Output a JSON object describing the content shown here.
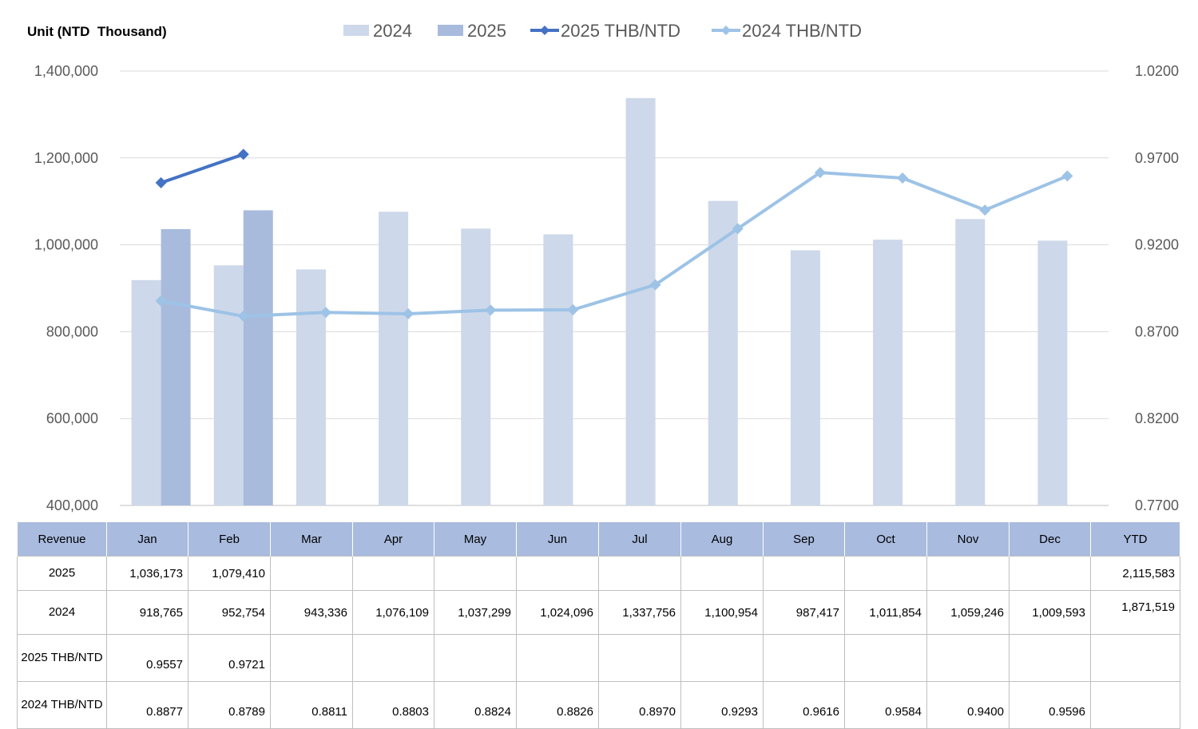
{
  "unit_label": "Unit (NTD  Thousand)",
  "colors": {
    "bar_2024": "#cdd8ea",
    "bar_2025": "#a8bbdd",
    "line_2025": "#4472c4",
    "line_2024": "#9dc3e6",
    "grid": "#d9d9d9",
    "header_bg": "#a9bbdf"
  },
  "chart_data": {
    "type": "bar",
    "categories": [
      "Jan",
      "Feb",
      "Mar",
      "Apr",
      "May",
      "Jun",
      "Jul",
      "Aug",
      "Sep",
      "Oct",
      "Nov",
      "Dec"
    ],
    "series": [
      {
        "name": "2024",
        "kind": "bar",
        "axis": "left",
        "values": [
          918765,
          952754,
          943336,
          1076109,
          1037299,
          1024096,
          1337756,
          1100954,
          987417,
          1011854,
          1059246,
          1009593
        ]
      },
      {
        "name": "2025",
        "kind": "bar",
        "axis": "left",
        "values": [
          1036173,
          1079410,
          null,
          null,
          null,
          null,
          null,
          null,
          null,
          null,
          null,
          null
        ]
      },
      {
        "name": "2025 THB/NTD",
        "kind": "line",
        "axis": "right",
        "values": [
          0.9557,
          0.9721,
          null,
          null,
          null,
          null,
          null,
          null,
          null,
          null,
          null,
          null
        ]
      },
      {
        "name": "2024 THB/NTD",
        "kind": "line",
        "axis": "right",
        "values": [
          0.8877,
          0.8789,
          0.8811,
          0.8803,
          0.8824,
          0.8826,
          0.897,
          0.9293,
          0.9616,
          0.9584,
          0.94,
          0.9596
        ]
      }
    ],
    "y_left": {
      "min": 400000,
      "max": 1400000,
      "ticks": [
        "400,000",
        "600,000",
        "800,000",
        "1,000,000",
        "1,200,000",
        "1,400,000"
      ]
    },
    "y_right": {
      "min": 0.77,
      "max": 1.02,
      "ticks": [
        "0.7700",
        "0.8200",
        "0.8700",
        "0.9200",
        "0.9700",
        "1.0200"
      ]
    },
    "legend_position": "top",
    "grid": true
  },
  "table": {
    "headers": [
      "Revenue",
      "Jan",
      "Feb",
      "Mar",
      "Apr",
      "May",
      "Jun",
      "Jul",
      "Aug",
      "Sep",
      "Oct",
      "Nov",
      "Dec",
      "YTD"
    ],
    "rows": [
      {
        "label": "2025",
        "cells": [
          "1,036,173",
          "1,079,410",
          "",
          "",
          "",
          "",
          "",
          "",
          "",
          "",
          "",
          ""
        ],
        "ytd": "2,115,583"
      },
      {
        "label": "2024",
        "cells": [
          "918,765",
          "952,754",
          "943,336",
          "1,076,109",
          "1,037,299",
          "1,024,096",
          "1,337,756",
          "1,100,954",
          "987,417",
          "1,011,854",
          "1,059,246",
          "1,009,593"
        ],
        "ytd": "1,871,519"
      },
      {
        "label": "2025 THB/NTD",
        "cells": [
          "0.9557",
          "0.9721",
          "",
          "",
          "",
          "",
          "",
          "",
          "",
          "",
          "",
          ""
        ],
        "ytd": ""
      },
      {
        "label": "2024 THB/NTD",
        "cells": [
          "0.8877",
          "0.8789",
          "0.8811",
          "0.8803",
          "0.8824",
          "0.8826",
          "0.8970",
          "0.9293",
          "0.9616",
          "0.9584",
          "0.9400",
          "0.9596"
        ],
        "ytd": ""
      }
    ]
  }
}
